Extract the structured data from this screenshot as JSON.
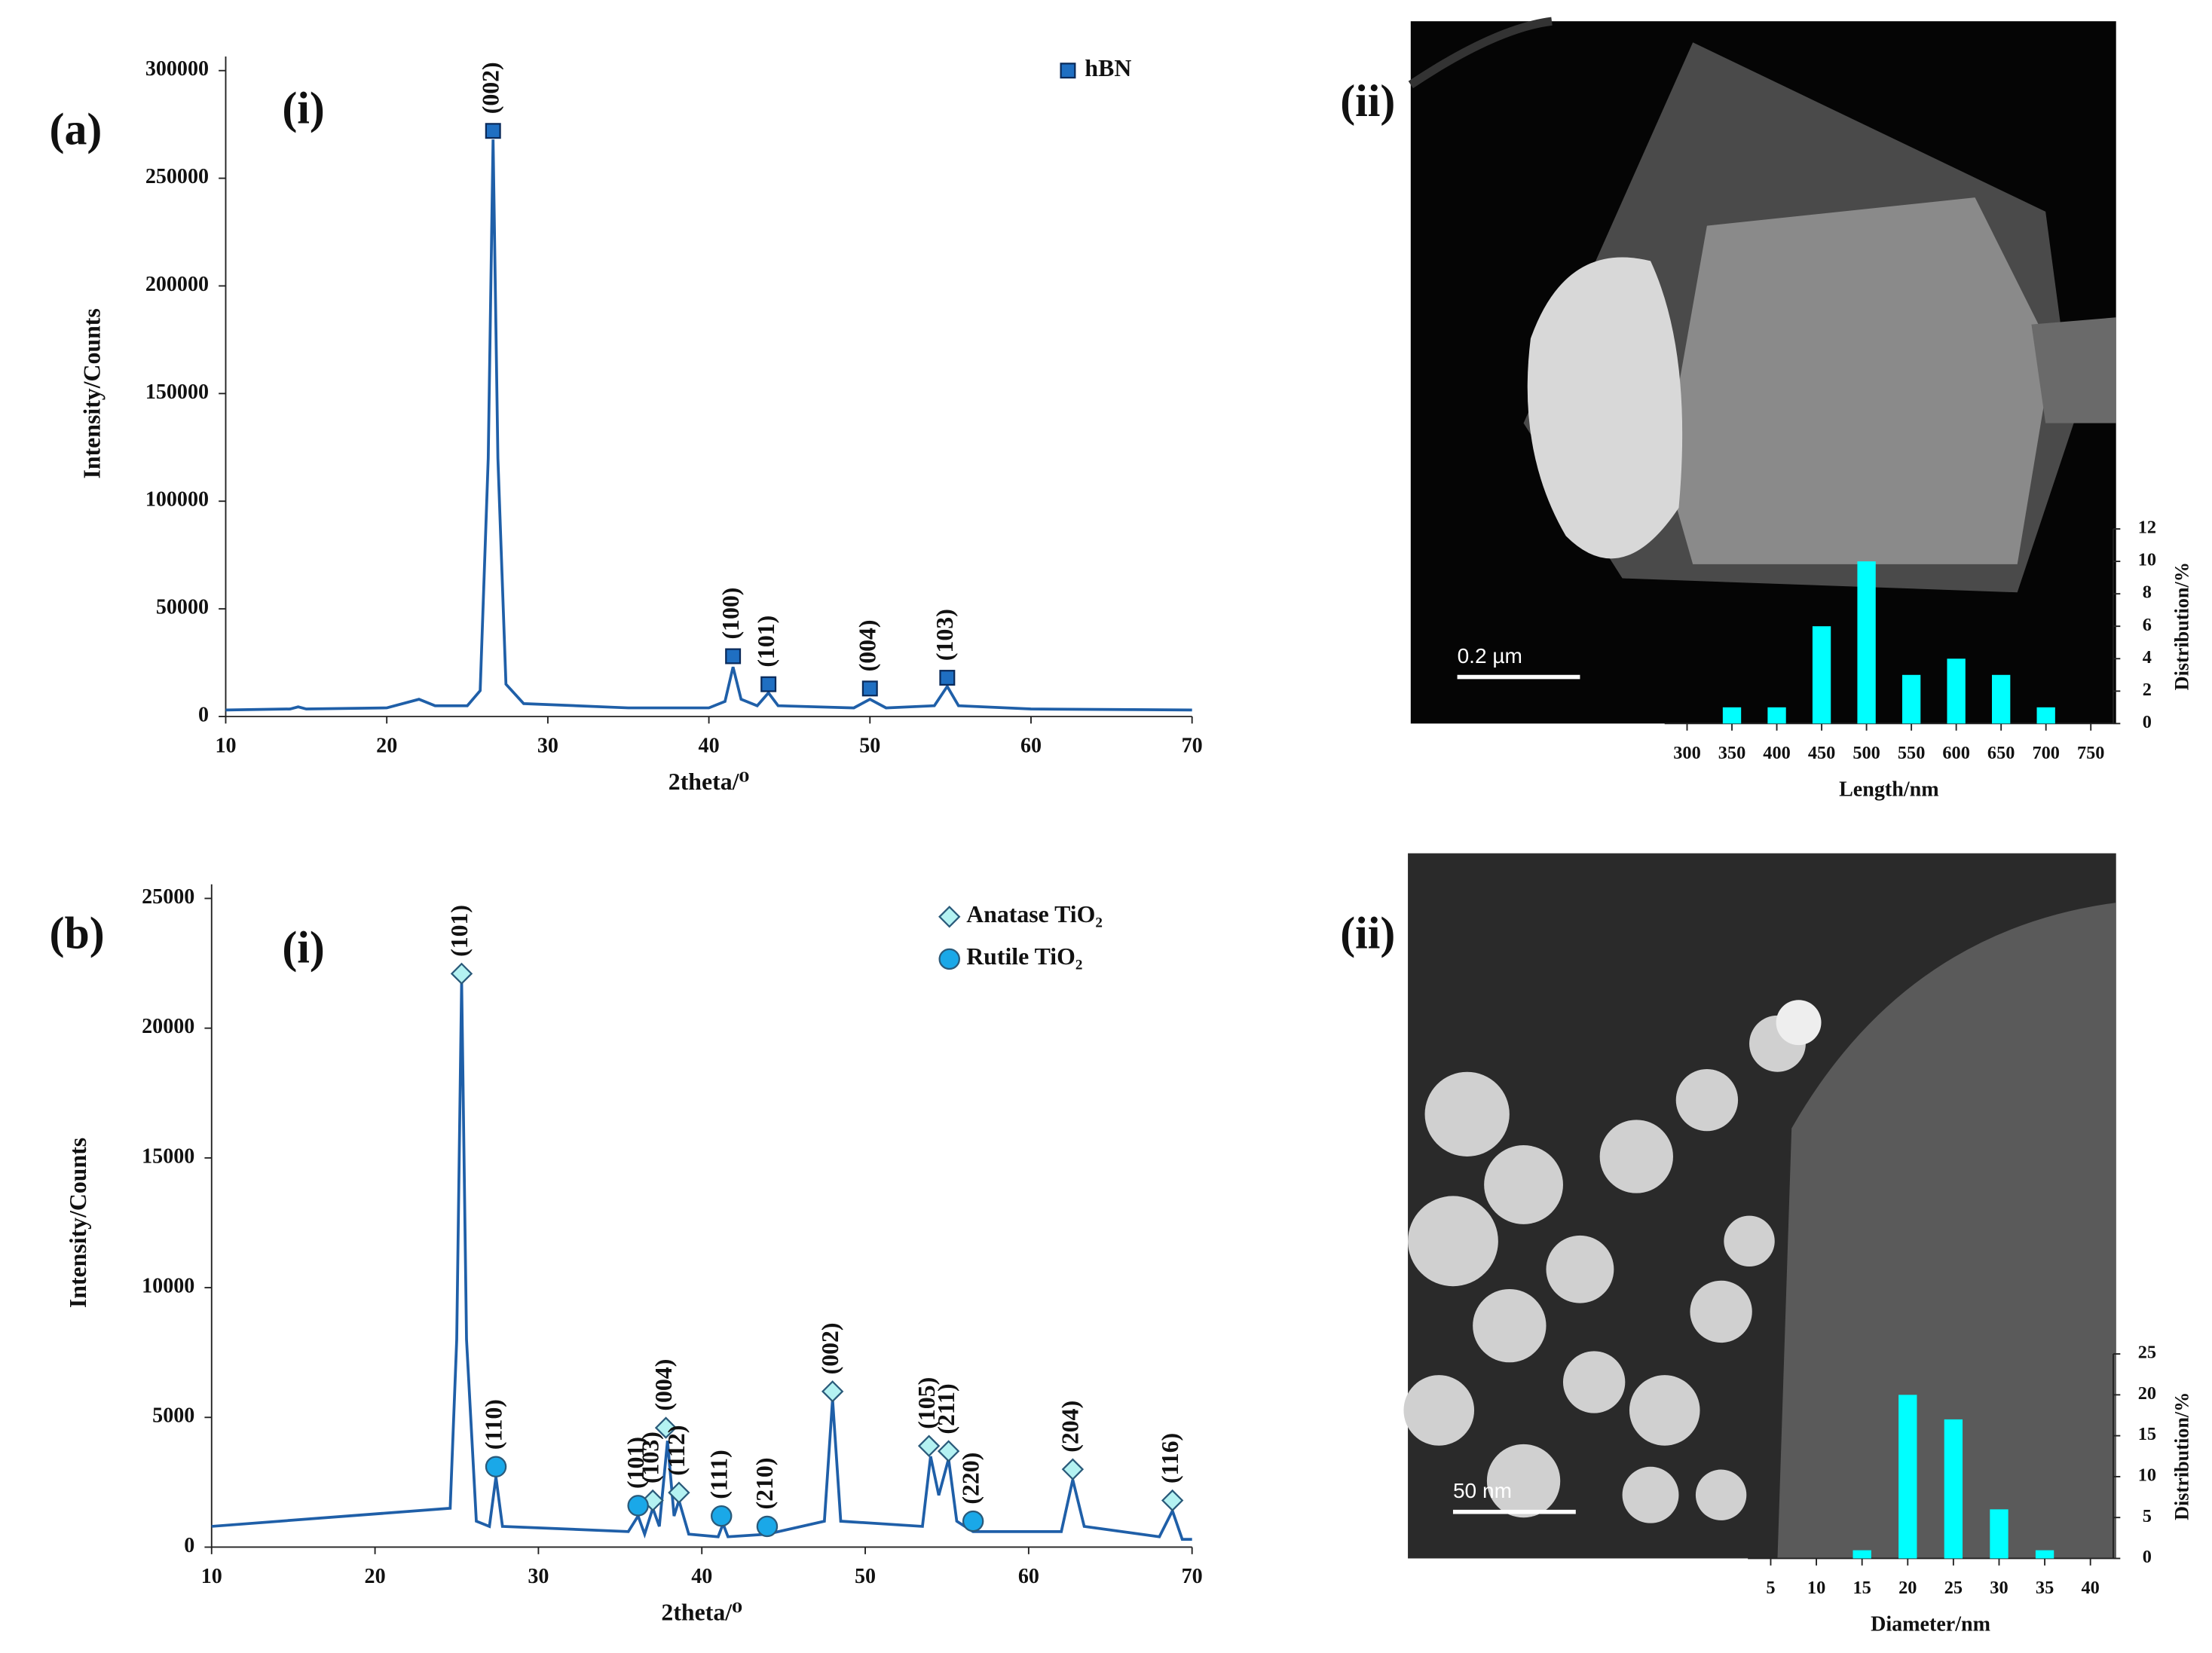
{
  "chart_data": [
    {
      "type": "line",
      "panel": "(a)",
      "subpanel": "(i)",
      "xlabel": "2theta/⁰",
      "ylabel": "Intensity/Counts",
      "xlim": [
        10,
        70
      ],
      "xticks": [
        10,
        20,
        30,
        40,
        50,
        60,
        70
      ],
      "ylim": [
        0,
        300000
      ],
      "yticks": [
        0,
        50000,
        100000,
        150000,
        200000,
        250000,
        300000
      ],
      "series": [
        {
          "color": "#1f5fa8",
          "x": [
            10,
            14,
            14.5,
            15,
            20,
            22,
            23,
            25,
            25.8,
            26.3,
            26.6,
            26.9,
            27.4,
            28.5,
            35,
            40,
            41,
            41.5,
            42,
            43,
            43.7,
            44.3,
            49,
            50,
            51,
            54,
            54.8,
            55.5,
            60,
            70
          ],
          "values": [
            3000,
            3500,
            4500,
            3500,
            4000,
            8000,
            5000,
            5000,
            12000,
            120000,
            268000,
            120000,
            15000,
            6000,
            4000,
            4000,
            7000,
            23000,
            8000,
            5000,
            11000,
            5000,
            4000,
            8000,
            4000,
            5000,
            14000,
            5000,
            3500,
            3000
          ]
        },
        {
          "name": "hBN",
          "marker": "square",
          "color": "#1f6fc2",
          "x": [
            26.6,
            41.5,
            43.7,
            50,
            54.8
          ],
          "values": [
            272000,
            28000,
            15000,
            13000,
            18000
          ],
          "labels": [
            "(002)",
            "(100)",
            "(101)",
            "(004)",
            "(103)"
          ]
        }
      ]
    },
    {
      "type": "bar",
      "subpanel": "(ii)",
      "scale_bar": "0.2 µm",
      "xlabel": "Length/nm",
      "ylabel": "Distribution/%",
      "color": "#00ffff",
      "x": [
        350,
        400,
        450,
        500,
        550,
        600,
        650,
        700
      ],
      "values": [
        1,
        1,
        6,
        10,
        3,
        4,
        3,
        1
      ],
      "xlim": [
        275,
        775
      ],
      "xticks": [
        300,
        350,
        400,
        450,
        500,
        550,
        600,
        650,
        700,
        750
      ],
      "ylim": [
        0,
        12
      ],
      "yticks": [
        0,
        2,
        4,
        6,
        8,
        10,
        12
      ]
    },
    {
      "type": "line",
      "panel": "(b)",
      "subpanel": "(i)",
      "xlabel": "2theta/⁰",
      "ylabel": "Intensity/Counts",
      "xlim": [
        10,
        70
      ],
      "xticks": [
        10,
        20,
        30,
        40,
        50,
        60,
        70
      ],
      "ylim": [
        0,
        25000
      ],
      "yticks": [
        0,
        5000,
        10000,
        15000,
        20000,
        25000
      ],
      "series": [
        {
          "color": "#1f5fa8",
          "x": [
            10,
            24.6,
            25.0,
            25.3,
            25.6,
            26.2,
            27.0,
            27.4,
            27.8,
            35.5,
            36.1,
            36.5,
            37.0,
            37.4,
            37.9,
            38.3,
            38.6,
            39.2,
            41,
            41.3,
            41.6,
            44,
            47.5,
            48.0,
            48.5,
            53.5,
            54.0,
            54.5,
            55.1,
            55.6,
            56.6,
            62,
            62.7,
            63.4,
            68.0,
            68.8,
            69.4,
            70
          ],
          "values": [
            800,
            1500,
            8000,
            21800,
            8000,
            1000,
            800,
            2700,
            800,
            600,
            1200,
            500,
            1500,
            800,
            4100,
            1200,
            1800,
            500,
            400,
            900,
            400,
            500,
            1000,
            5700,
            1000,
            800,
            3500,
            2000,
            3400,
            1000,
            600,
            600,
            2600,
            800,
            400,
            1400,
            300,
            300
          ]
        },
        {
          "name": "Anatase TiO₂",
          "marker": "diamond",
          "color": "#b4f2f2",
          "x": [
            25.3,
            37.0,
            37.8,
            38.6,
            48.0,
            53.9,
            55.1,
            62.7,
            68.8
          ],
          "values": [
            22100,
            1800,
            4600,
            2100,
            6000,
            3900,
            3700,
            3000,
            1800
          ],
          "labels": [
            "(101)",
            "(103)",
            "(004)",
            "(112)",
            "(002)",
            "(105)",
            "(211)",
            "(204)",
            "(116)"
          ]
        },
        {
          "name": "Rutile TiO₂",
          "marker": "circle",
          "color": "#1aa8e8",
          "x": [
            27.4,
            36.1,
            41.2,
            44.0,
            56.6
          ],
          "values": [
            3100,
            1600,
            1200,
            800,
            1000
          ],
          "labels": [
            "(110)",
            "(101)",
            "(111)",
            "(210)",
            "(220)"
          ]
        }
      ]
    },
    {
      "type": "bar",
      "subpanel": "(ii)",
      "scale_bar": "50 nm",
      "xlabel": "Diameter/nm",
      "ylabel": "Distribution/%",
      "color": "#00ffff",
      "x": [
        15,
        20,
        25,
        30,
        35
      ],
      "values": [
        1,
        20,
        17,
        6,
        1
      ],
      "xlim": [
        2.5,
        42.5
      ],
      "xticks": [
        5,
        10,
        15,
        20,
        25,
        30,
        35,
        40
      ],
      "ylim": [
        0,
        25
      ],
      "yticks": [
        0,
        5,
        10,
        15,
        20,
        25
      ]
    }
  ]
}
